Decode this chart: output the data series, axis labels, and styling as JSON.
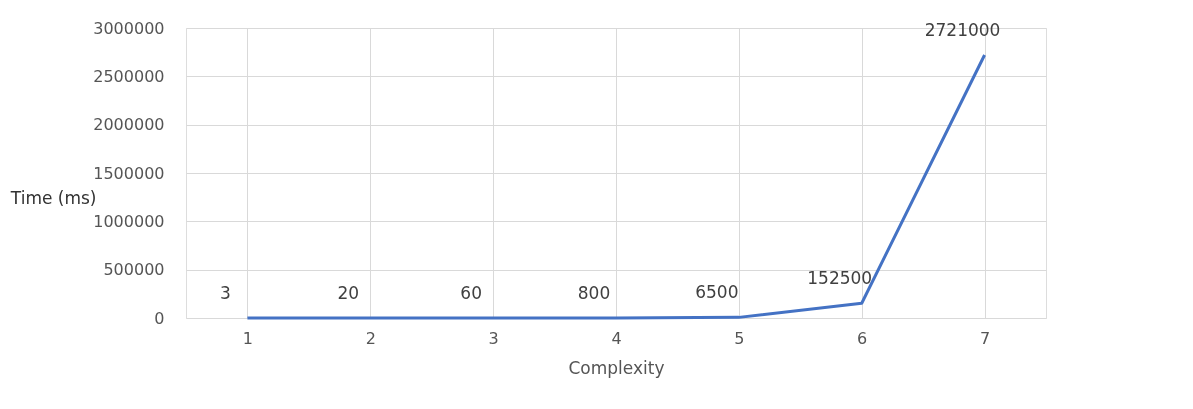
{
  "chart_data": {
    "type": "line",
    "xlabel": "Complexity",
    "ylabel": "Time (ms)",
    "categories": [
      "1",
      "2",
      "3",
      "4",
      "5",
      "6",
      "7"
    ],
    "series": [
      {
        "color": "#4472c4",
        "values": [
          3,
          20,
          60,
          800,
          6500,
          152500,
          2721000
        ]
      }
    ],
    "ylim": [
      0,
      3000000
    ],
    "yticks": [
      0,
      500000,
      1000000,
      1500000,
      2000000,
      2500000,
      3000000
    ],
    "grid": true,
    "data_labels": true,
    "marker": "none",
    "line_style": "solid"
  }
}
